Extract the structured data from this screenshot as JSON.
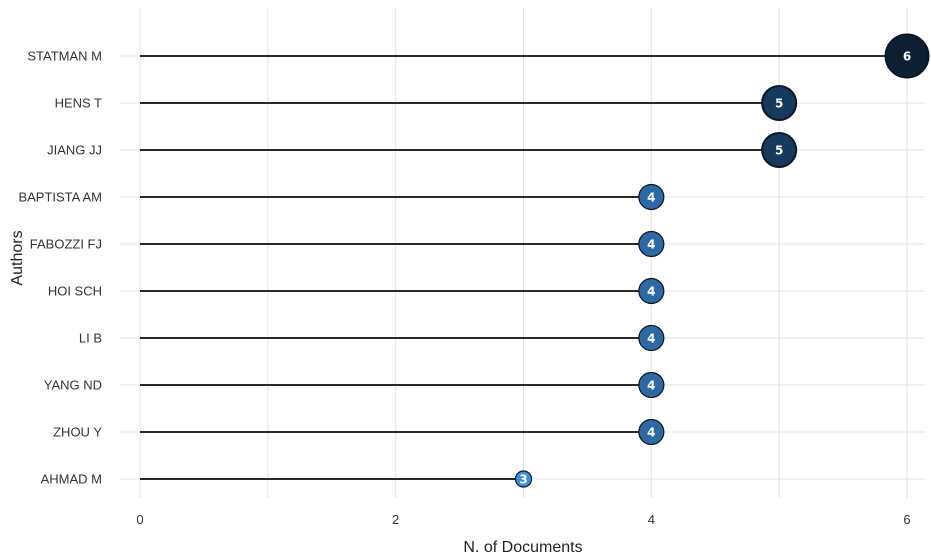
{
  "chart_data": {
    "type": "scatter",
    "variant": "lollipop",
    "title": "",
    "xlabel": "N. of Documents",
    "ylabel": "Authors",
    "xlim": [
      0,
      6
    ],
    "xticks": [
      0,
      2,
      4,
      6
    ],
    "grid": true,
    "legend": "none",
    "categories": [
      "STATMAN M",
      "HENS T",
      "JIANG JJ",
      "BAPTISTA AM",
      "FABOZZI FJ",
      "HOI SCH",
      "LI B",
      "YANG ND",
      "ZHOU Y",
      "AHMAD M"
    ],
    "values": [
      6,
      5,
      5,
      4,
      4,
      4,
      4,
      4,
      4,
      3
    ],
    "data_labels": [
      "6",
      "5",
      "5",
      "4",
      "4",
      "4",
      "4",
      "4",
      "4",
      "3"
    ],
    "colors": {
      "6": "#0d1f33",
      "5": "#163a5c",
      "4": "#2d6aa3",
      "3": "#3d8fd8"
    },
    "stem_color": "#2a2a2a",
    "grid_color": "#e3e3e3"
  }
}
